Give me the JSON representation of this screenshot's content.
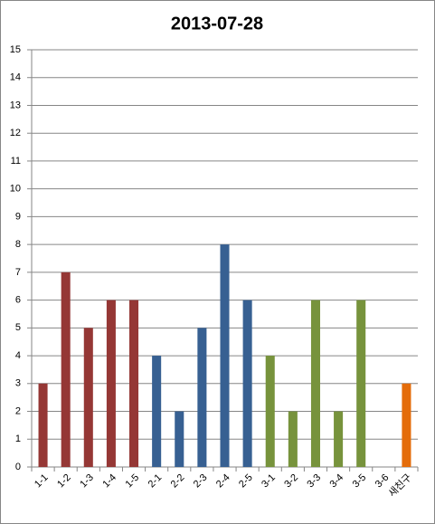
{
  "chart_data": {
    "type": "bar",
    "title": "2013-07-28",
    "categories": [
      "1-1",
      "1-2",
      "1-3",
      "1-4",
      "1-5",
      "2-1",
      "2-2",
      "2-3",
      "2-4",
      "2-5",
      "3-1",
      "3-2",
      "3-3",
      "3-4",
      "3-5",
      "3-6",
      "새친구"
    ],
    "values": [
      3,
      7,
      5,
      6,
      6,
      4,
      2,
      5,
      8,
      6,
      4,
      2,
      6,
      2,
      6,
      0,
      3
    ],
    "colors": [
      "#953735",
      "#953735",
      "#953735",
      "#953735",
      "#953735",
      "#376092",
      "#376092",
      "#376092",
      "#376092",
      "#376092",
      "#77933c",
      "#77933c",
      "#77933c",
      "#77933c",
      "#77933c",
      "#77933c",
      "#e46c0a"
    ],
    "ylim": [
      0,
      15
    ],
    "yticks": [
      0,
      1,
      2,
      3,
      4,
      5,
      6,
      7,
      8,
      9,
      10,
      11,
      12,
      13,
      14,
      15
    ],
    "grid": true
  }
}
